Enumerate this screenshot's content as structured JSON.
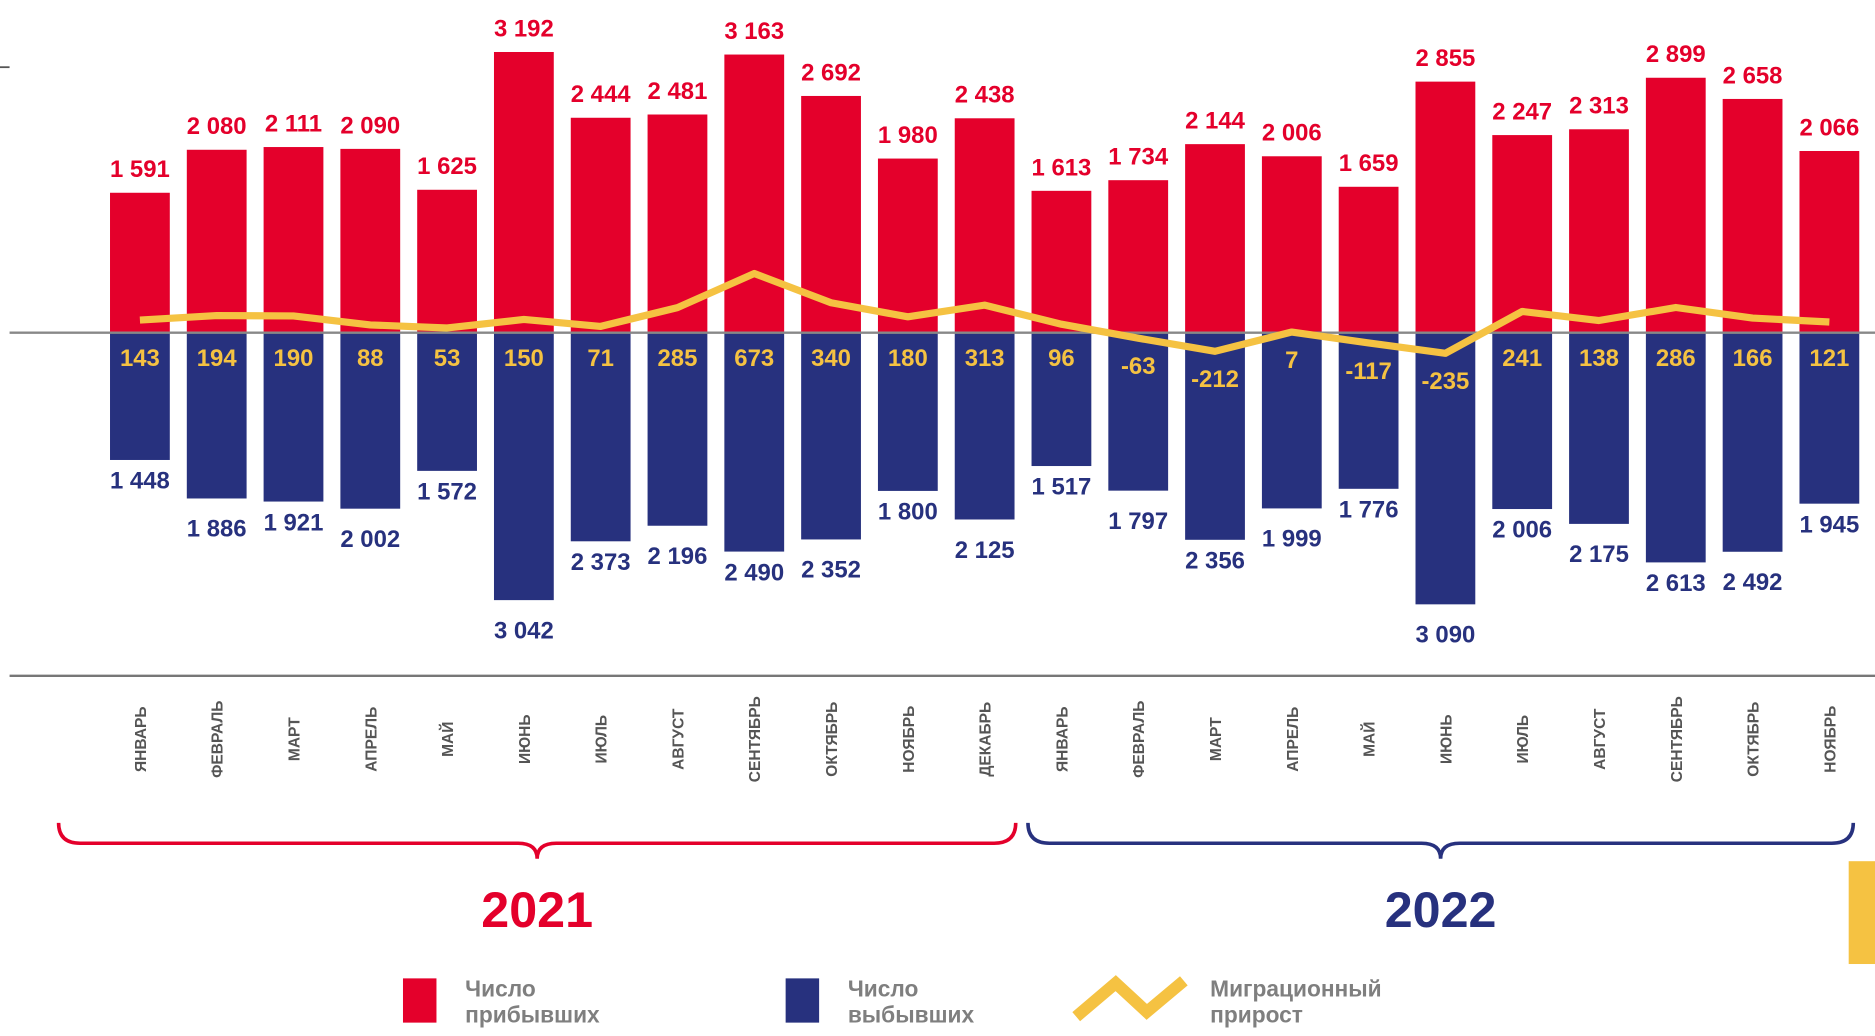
{
  "chart_data": {
    "type": "bar-line",
    "categories": [
      "ЯНВАРЬ",
      "ФЕВРАЛЬ",
      "МАРТ",
      "АПРЕЛЬ",
      "МАЙ",
      "ИЮНЬ",
      "ИЮЛЬ",
      "АВГУСТ",
      "СЕНТЯБРЬ",
      "ОКТЯБРЬ",
      "НОЯБРЬ",
      "ДЕКАБРЬ",
      "ЯНВАРЬ",
      "ФЕВРАЛЬ",
      "МАРТ",
      "АПРЕЛЬ",
      "МАЙ",
      "ИЮНЬ",
      "ИЮЛЬ",
      "АВГУСТ",
      "СЕНТЯБРЬ",
      "ОКТЯБРЬ",
      "НОЯБРЬ"
    ],
    "groups": [
      {
        "label": "2021",
        "count": 12,
        "color": "#e4002b"
      },
      {
        "label": "2022",
        "count": 11,
        "color": "#27317e"
      }
    ],
    "ylim": [
      -3400,
      3400
    ],
    "series": [
      {
        "name": "Число прибывших",
        "color": "#e4002b",
        "kind": "bar",
        "direction": "up",
        "values": [
          1591,
          2080,
          2111,
          2090,
          1625,
          3192,
          2444,
          2481,
          3163,
          2692,
          1980,
          2438,
          1613,
          1734,
          2144,
          2006,
          1659,
          2855,
          2247,
          2313,
          2899,
          2658,
          2066
        ],
        "value_labels": [
          "1 591",
          "2 080",
          "2 111",
          "2 090",
          "1 625",
          "3 192",
          "2 444",
          "2 481",
          "3 163",
          "2 692",
          "1 980",
          "2 438",
          "1 613",
          "1 734",
          "2 144",
          "2 006",
          "1 659",
          "2 855",
          "2 247",
          "2 313",
          "2 899",
          "2 658",
          "2 066"
        ]
      },
      {
        "name": "Число выбывших",
        "color": "#27317e",
        "kind": "bar",
        "direction": "down",
        "values": [
          1448,
          1886,
          1921,
          2002,
          1572,
          3042,
          2373,
          2196,
          2490,
          2352,
          1800,
          2125,
          1517,
          1797,
          2356,
          1999,
          1776,
          3090,
          2006,
          2175,
          2613,
          2492,
          1945
        ],
        "value_labels": [
          "1 448",
          "1 886",
          "1 921",
          "2 002",
          "1 572",
          "3 042",
          "2 373",
          "2 196",
          "2 490",
          "2 352",
          "1 800",
          "2 125",
          "1 517",
          "1 797",
          "2 356",
          "1 999",
          "1 776",
          "3 090",
          "2 006",
          "2 175",
          "2 613",
          "2 492",
          "1 945"
        ]
      },
      {
        "name": "Миграционный прирост",
        "color": "#f5c242",
        "kind": "line",
        "values": [
          143,
          194,
          190,
          88,
          53,
          150,
          71,
          285,
          673,
          340,
          180,
          313,
          96,
          -63,
          -212,
          7,
          -117,
          -235,
          241,
          138,
          286,
          166,
          121
        ]
      }
    ]
  }
}
